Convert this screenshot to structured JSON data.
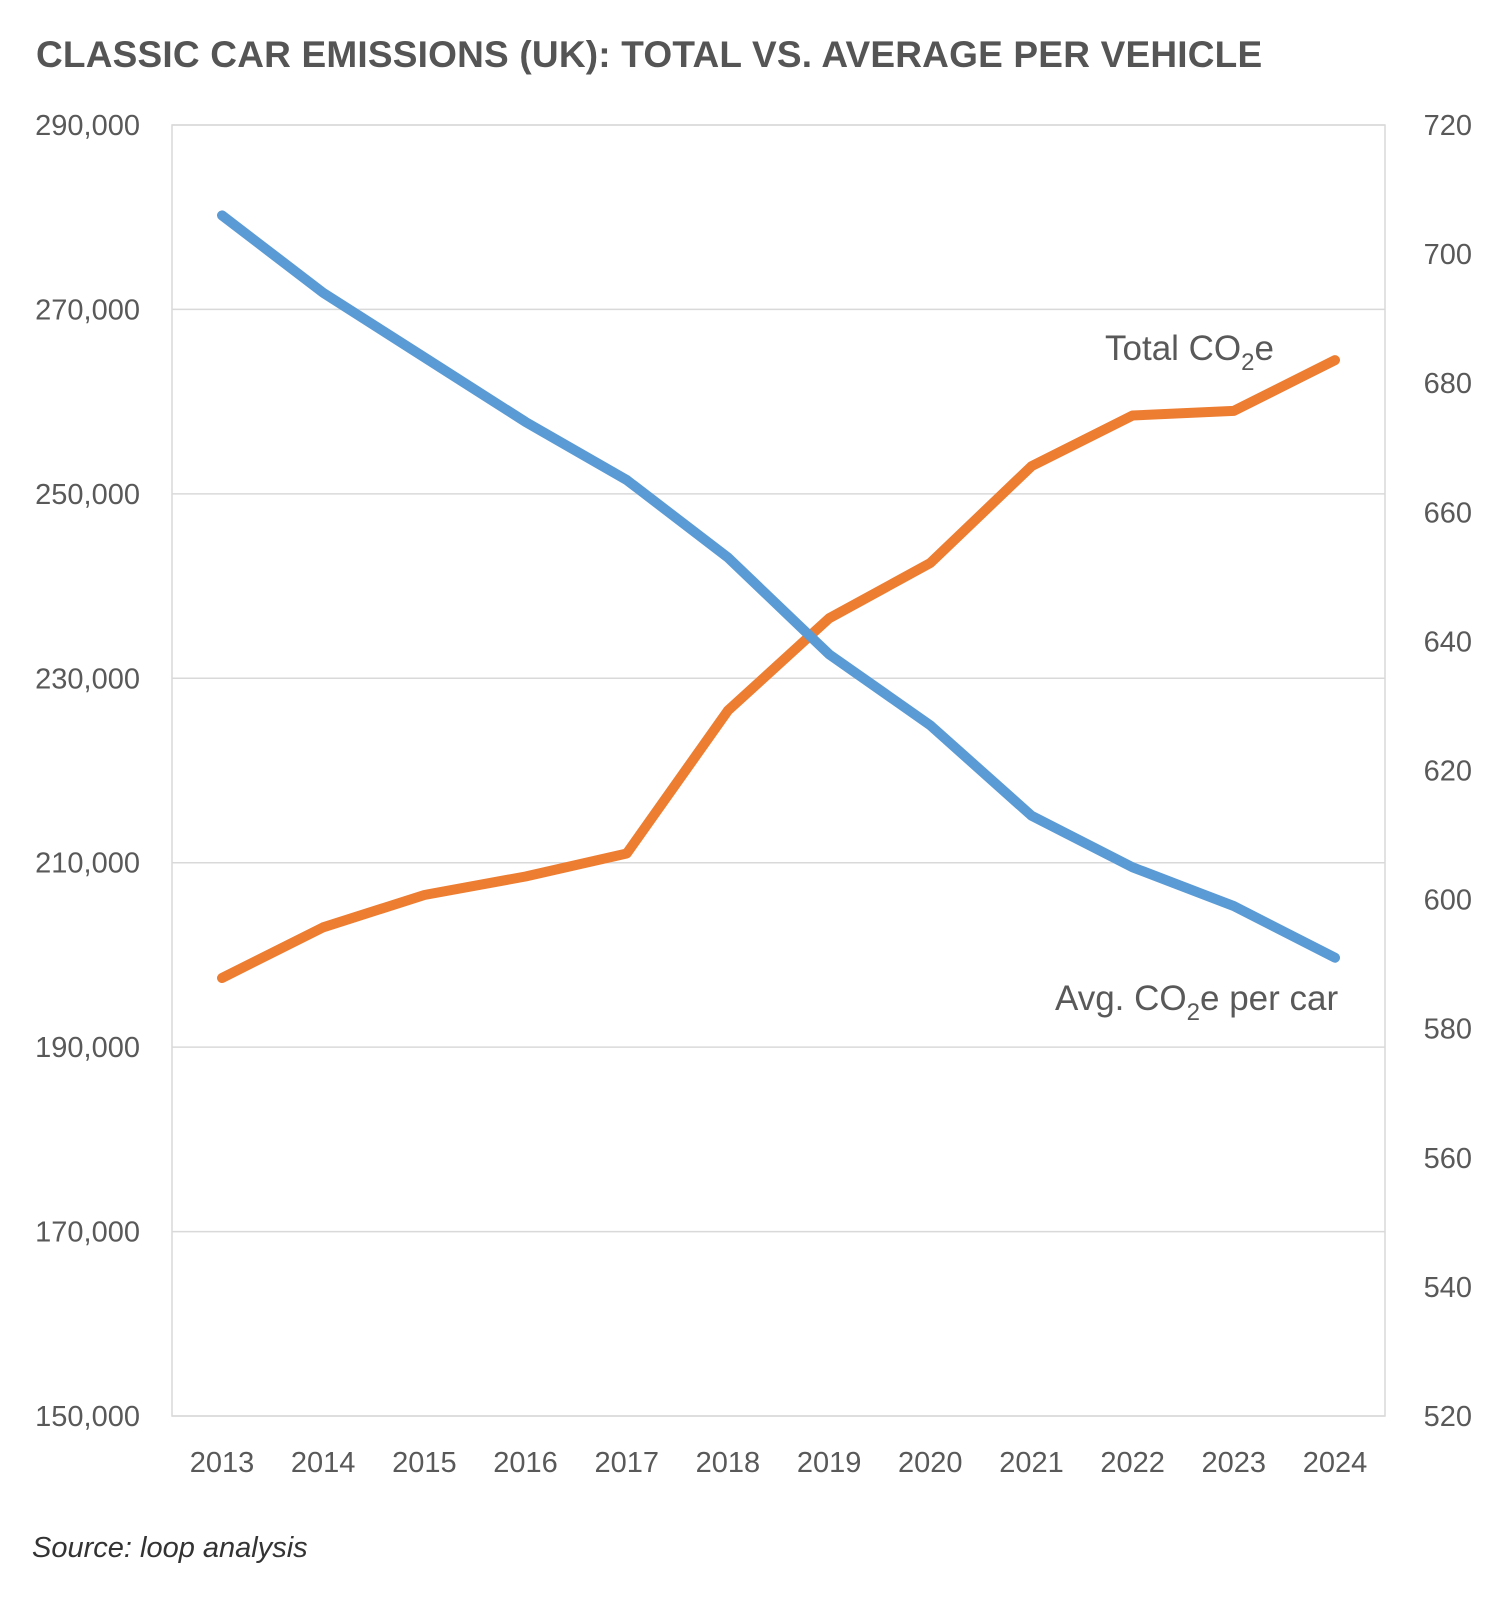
{
  "chart_data": {
    "type": "line",
    "title": "CLASSIC CAR EMISSIONS (UK): TOTAL VS. AVERAGE PER VEHICLE",
    "source": "Source: loop analysis",
    "x": [
      "2013",
      "2014",
      "2015",
      "2016",
      "2017",
      "2018",
      "2019",
      "2020",
      "2021",
      "2022",
      "2023",
      "2024"
    ],
    "y_left": {
      "min": 150000,
      "max": 290000,
      "ticks": [
        "150,000",
        "170,000",
        "190,000",
        "210,000",
        "230,000",
        "250,000",
        "270,000",
        "290,000"
      ],
      "tick_values": [
        150000,
        170000,
        190000,
        210000,
        230000,
        250000,
        270000,
        290000
      ]
    },
    "y_right": {
      "min": 520,
      "max": 720,
      "ticks": [
        "520",
        "540",
        "560",
        "580",
        "600",
        "620",
        "640",
        "660",
        "680",
        "700",
        "720"
      ],
      "tick_values": [
        520,
        540,
        560,
        580,
        600,
        620,
        640,
        660,
        680,
        700,
        720
      ]
    },
    "grid": true,
    "series": [
      {
        "name": "Total CO2e",
        "label_main": "Total CO",
        "label_sub": "2",
        "label_tail": "e",
        "axis": "left",
        "color": "#ED7D31",
        "values": [
          197500,
          203000,
          206500,
          208500,
          211000,
          226500,
          236500,
          242500,
          253000,
          258500,
          259000,
          264500
        ]
      },
      {
        "name": "Avg. CO2e per car",
        "label_main": "Avg. CO",
        "label_sub": "2",
        "label_tail": "e per car",
        "axis": "right",
        "color": "#5B9BD5",
        "values": [
          706,
          694,
          684,
          674,
          665,
          653,
          638,
          627,
          613,
          605,
          599,
          591
        ]
      }
    ]
  }
}
